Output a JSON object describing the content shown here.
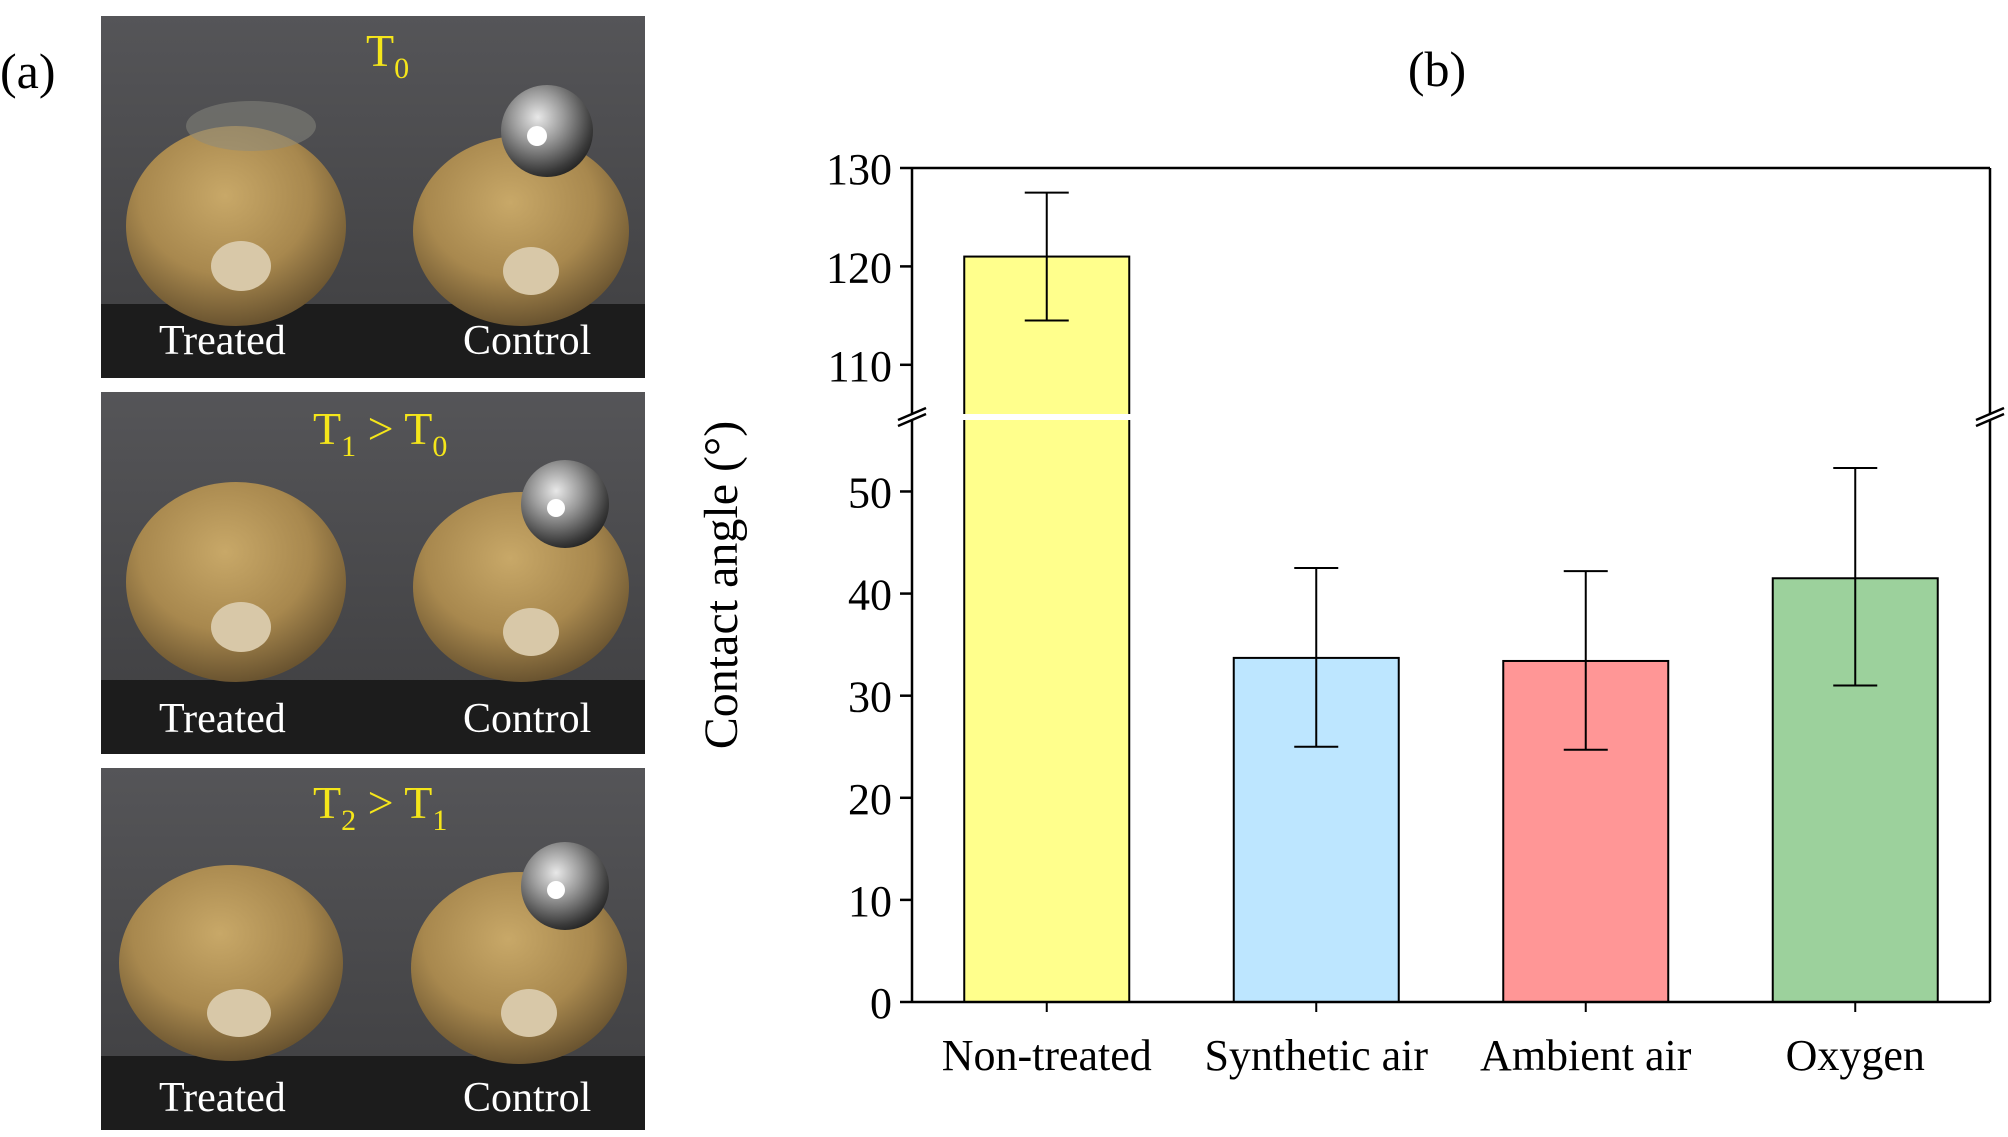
{
  "panel_a": {
    "label": "(a)",
    "photos": [
      {
        "title_main": "T",
        "title_sub": "0",
        "title_tail": "",
        "title_tail_sub": "",
        "left_label": "Treated",
        "right_label": "Control"
      },
      {
        "title_main": "T",
        "title_sub": "1",
        "title_tail": " > T",
        "title_tail_sub": "0",
        "left_label": "Treated",
        "right_label": "Control"
      },
      {
        "title_main": "T",
        "title_sub": "2",
        "title_tail": " > T",
        "title_tail_sub": "1",
        "left_label": "Treated",
        "right_label": "Control"
      }
    ],
    "title_color": "#f5e61a",
    "seed_color": "#a8884e",
    "background_color": "#4a4a4c"
  },
  "chart_data": {
    "panel_label": "(b)",
    "type": "bar",
    "categories": [
      "Non-treated",
      "Synthetic air",
      "Ambient air",
      "Oxygen"
    ],
    "values": [
      121,
      33.7,
      33.4,
      41.5
    ],
    "error_low": [
      114.5,
      25,
      24.7,
      31
    ],
    "error_high": [
      127.5,
      42.5,
      42.2,
      52.3
    ],
    "colors": [
      "#ffff8c",
      "#bde6ff",
      "#ff9696",
      "#9cd19c"
    ],
    "ylabel": "Contact angle (°)",
    "xlabel": "",
    "axis_break": {
      "lower_range": [
        0,
        57
      ],
      "upper_range": [
        105,
        130
      ]
    },
    "yticks_lower": [
      "0",
      "10",
      "20",
      "30",
      "40",
      "50"
    ],
    "yticks_upper": [
      "110",
      "120",
      "130"
    ]
  }
}
